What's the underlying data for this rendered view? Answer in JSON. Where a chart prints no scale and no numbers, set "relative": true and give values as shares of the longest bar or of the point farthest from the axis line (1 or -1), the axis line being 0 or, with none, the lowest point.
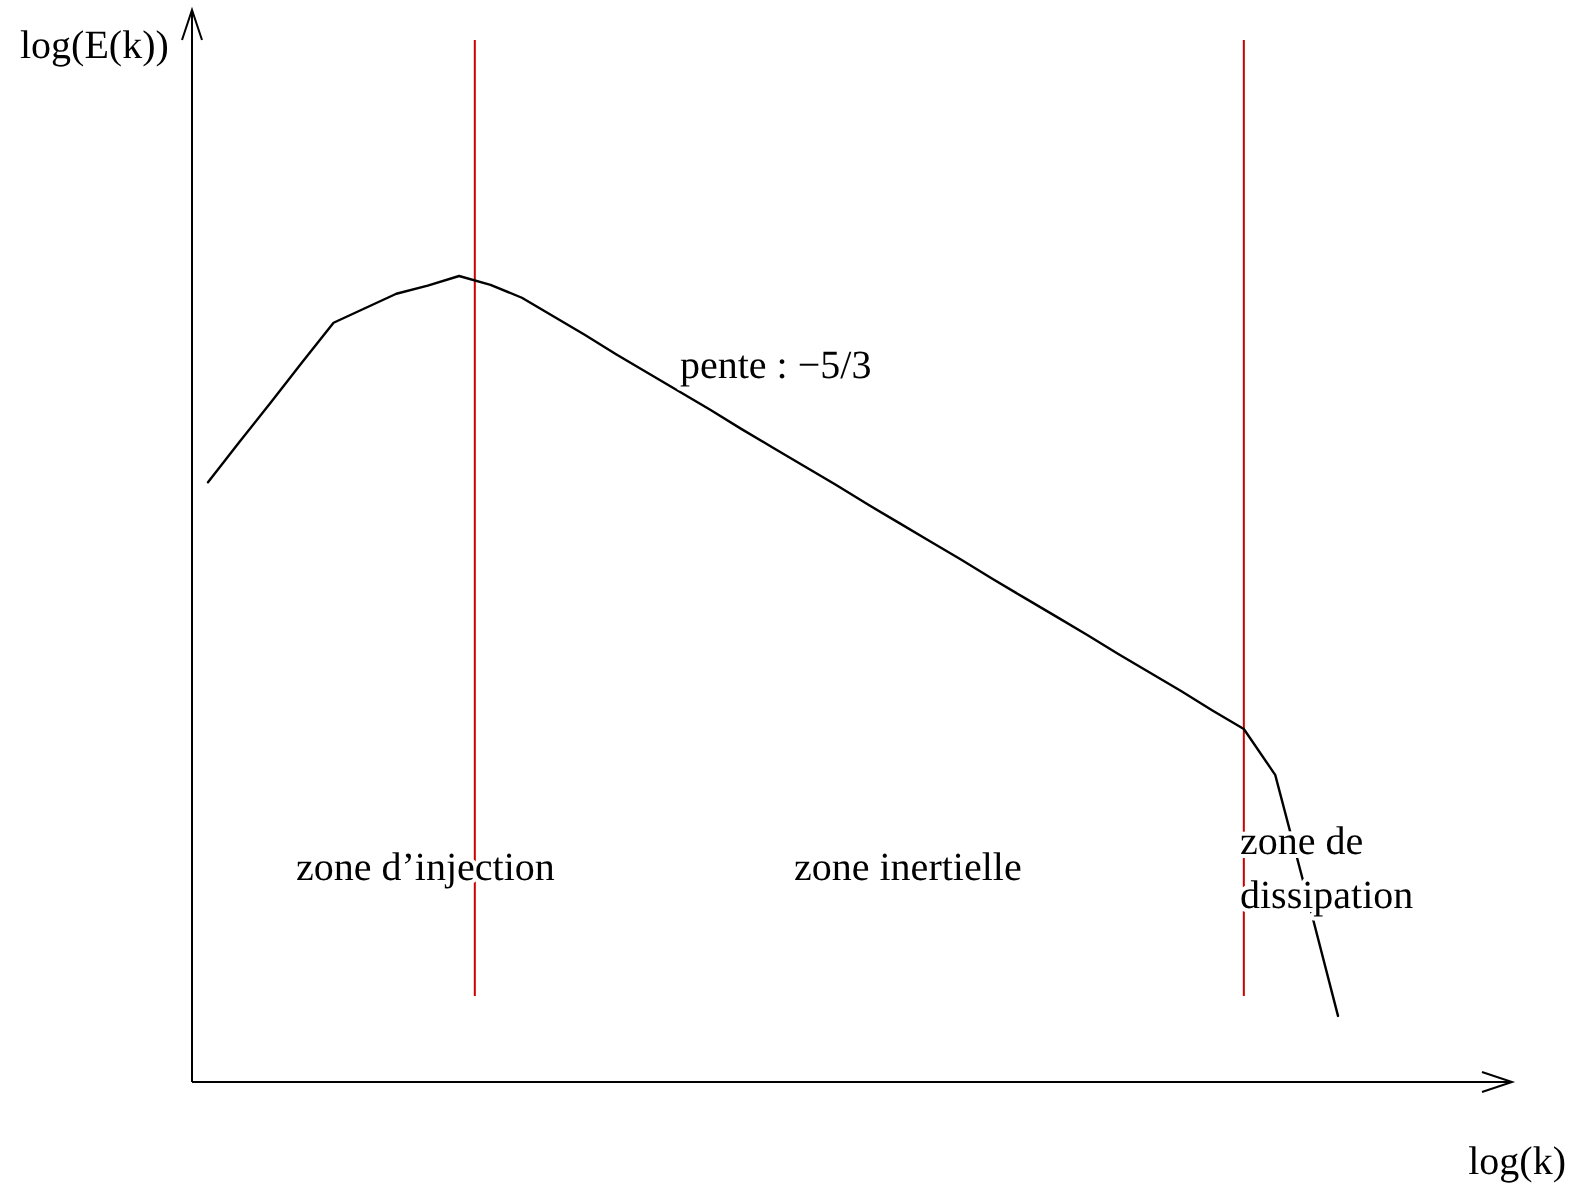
{
  "chart_data": {
    "type": "line",
    "relative": true,
    "xlabel": "log(k)",
    "categories": [
      null,
      null,
      null,
      null,
      null,
      null,
      null,
      null,
      null,
      null,
      null,
      null,
      null,
      null,
      null,
      null,
      null,
      null,
      null,
      null,
      null,
      null,
      null,
      null,
      null,
      null,
      null,
      null,
      null,
      null,
      null,
      null,
      null,
      null,
      null,
      null,
      null
    ],
    "series": [
      {
        "color": "#000000",
        "values": [
          0.744,
          0.794,
          0.843,
          0.893,
          0.942,
          0.96,
          0.978,
          0.988,
          1,
          0.989,
          0.973,
          0.95,
          0.927,
          0.903,
          0.88,
          0.857,
          0.834,
          0.81,
          0.787,
          0.764,
          0.741,
          0.717,
          0.694,
          0.671,
          0.648,
          0.624,
          0.601,
          0.578,
          0.555,
          0.531,
          0.508,
          0.485,
          0.461,
          0.438,
          0.381,
          0.233,
          0.082
        ]
      }
    ],
    "annotations": [
      "pente : −5/3",
      "zone d’injection",
      "zone inertielle",
      "zone de dissipation",
      "log(E(k))"
    ],
    "marker": "none",
    "line_style": "solid"
  }
}
